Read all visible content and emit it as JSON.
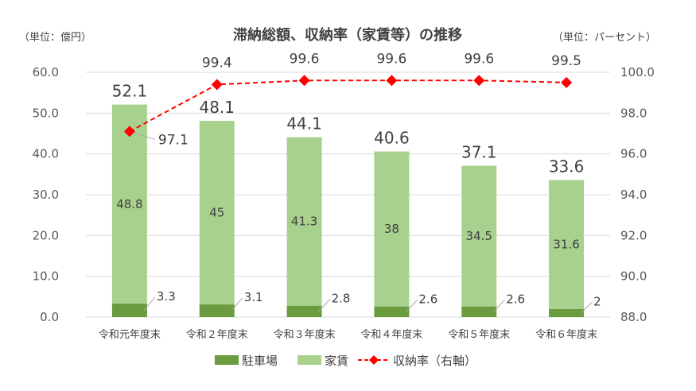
{
  "chart_data": {
    "type": "bar",
    "title": "滞納総額、収納率（家賃等）の推移",
    "left_unit": "（単位：億円）",
    "right_unit": "（単位：パーセント）",
    "categories": [
      "令和元年度末",
      "令和２年度末",
      "令和３年度末",
      "令和４年度末",
      "令和５年度末",
      "令和６年度末"
    ],
    "series": [
      {
        "name": "駐車場",
        "kind": "stacked-bar",
        "axis": "left",
        "values": [
          3.3,
          3.1,
          2.8,
          2.6,
          2.6,
          2.0
        ]
      },
      {
        "name": "家賃",
        "kind": "stacked-bar",
        "axis": "left",
        "values": [
          48.8,
          45.0,
          41.3,
          38.0,
          34.5,
          31.6
        ]
      },
      {
        "name": "収納率（右軸）",
        "kind": "line",
        "axis": "right",
        "values": [
          97.1,
          99.4,
          99.6,
          99.6,
          99.6,
          99.5
        ]
      }
    ],
    "totals": [
      52.1,
      48.1,
      44.1,
      40.6,
      37.1,
      33.6
    ],
    "ylim_left": [
      0,
      60
    ],
    "yticks_left": [
      "0.0",
      "10.0",
      "20.0",
      "30.0",
      "40.0",
      "50.0",
      "60.0"
    ],
    "ylim_right": [
      88,
      100
    ],
    "yticks_right": [
      "88.0",
      "90.0",
      "92.0",
      "94.0",
      "96.0",
      "98.0",
      "100.0"
    ],
    "grid": true,
    "legend_position": "bottom",
    "colors": {
      "parking": "#6a9b3f",
      "rent": "#a9d18e",
      "rate": "#ff0000",
      "grid": "#d9d9d9"
    }
  }
}
